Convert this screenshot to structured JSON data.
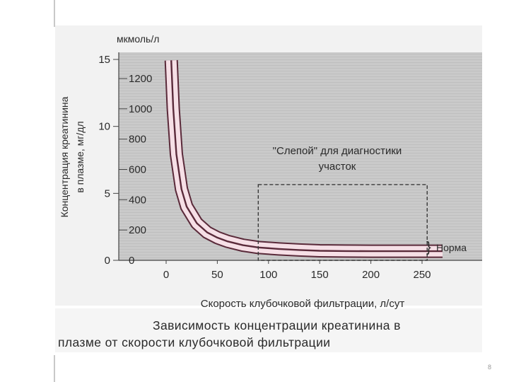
{
  "caption": {
    "line1": "Зависимость концентрации креатинина в",
    "line2": "плазме от скорости клубочковой фильтрации"
  },
  "page_number": "8",
  "colors": {
    "plot_background": "#c9c9c9",
    "curve_band": "#f6dfe6",
    "curve_line": "#5a2a3a",
    "text": "#2a2a2a"
  },
  "chart_data": {
    "type": "line",
    "title": "",
    "xlabel": "Скорость клубочковой фильтрации, л/сут",
    "ylabel": "Концентрация креатинина в плазме, мг/дл",
    "y2label": "мкмоль/л",
    "xlim": [
      -10,
      270
    ],
    "ylim": [
      0,
      1330
    ],
    "x_ticks": [
      0,
      50,
      100,
      150,
      200,
      250
    ],
    "y_ticks_mg_dl": [
      0,
      5,
      10,
      15
    ],
    "y_ticks_umol_l": [
      0,
      200,
      400,
      600,
      800,
      1000,
      1200
    ],
    "series": [
      {
        "name": "",
        "x": [
          5,
          7,
          10,
          15,
          20,
          30,
          40,
          50,
          60,
          75,
          90,
          110,
          130,
          150,
          175,
          200,
          225,
          250,
          270
        ],
        "values": [
          1320,
          1000,
          700,
          470,
          355,
          245,
          185,
          150,
          125,
          100,
          85,
          75,
          68,
          63,
          61,
          60,
          60,
          60,
          60
        ]
      }
    ],
    "annotations": {
      "blind_region_label_1": "\"Слепой\" для диагностики",
      "blind_region_label_2": "участок",
      "blind_region_x": [
        90,
        255
      ],
      "blind_region_y": [
        0,
        500
      ],
      "norm_label": "Норма",
      "norm_brace": "}"
    },
    "grid": false,
    "legend": "none"
  }
}
